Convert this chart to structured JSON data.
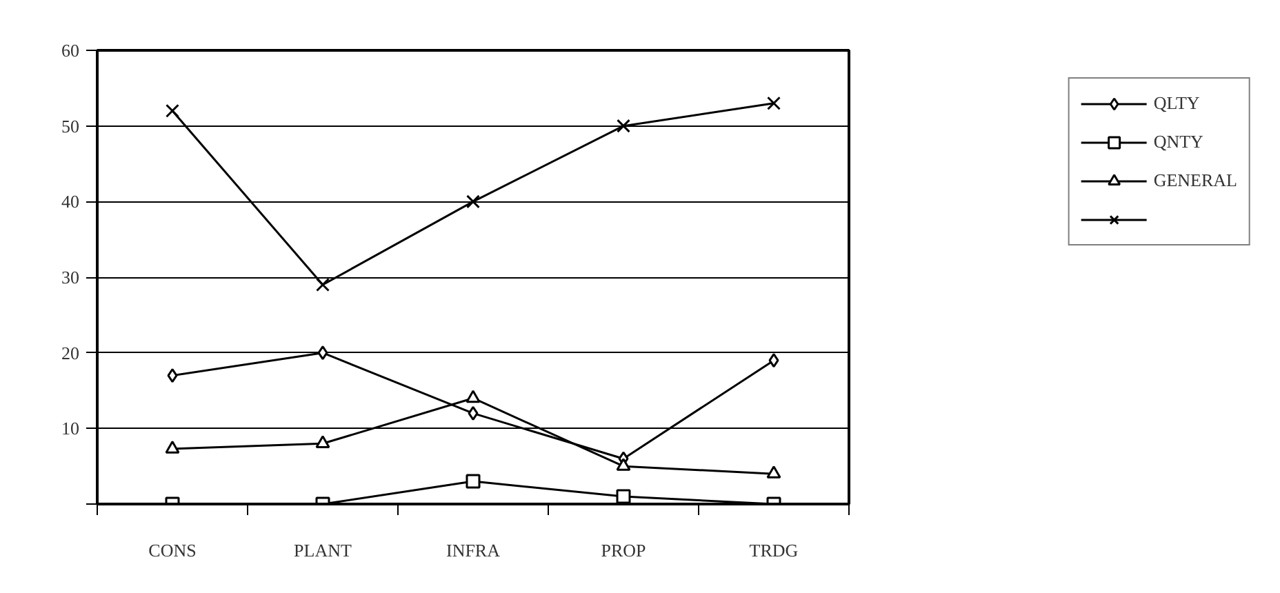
{
  "chart_data": {
    "type": "line",
    "categories": [
      "CONS",
      "PLANT",
      "INFRA",
      "PROP",
      "TRDG"
    ],
    "series": [
      {
        "name": "QLTY",
        "color": "#000000",
        "marker": "diamond",
        "values": [
          17,
          20,
          12,
          6,
          19
        ]
      },
      {
        "name": "QNTY",
        "color": "#000000",
        "marker": "square",
        "values": [
          0,
          0,
          3,
          1,
          0
        ]
      },
      {
        "name": "GENERAL",
        "color": "#000000",
        "marker": "triangle",
        "values": [
          7.3,
          8,
          14,
          5,
          4
        ]
      },
      {
        "color": "#000000",
        "marker": "cross",
        "values": [
          52,
          29,
          40,
          50,
          53
        ]
      }
    ],
    "ylim": [
      0,
      60
    ],
    "yticks": [
      {
        "value": 0,
        "label": null
      },
      10,
      20,
      30,
      40,
      50,
      60
    ],
    "grid": "y",
    "legend": "right",
    "line_style": "solid"
  }
}
